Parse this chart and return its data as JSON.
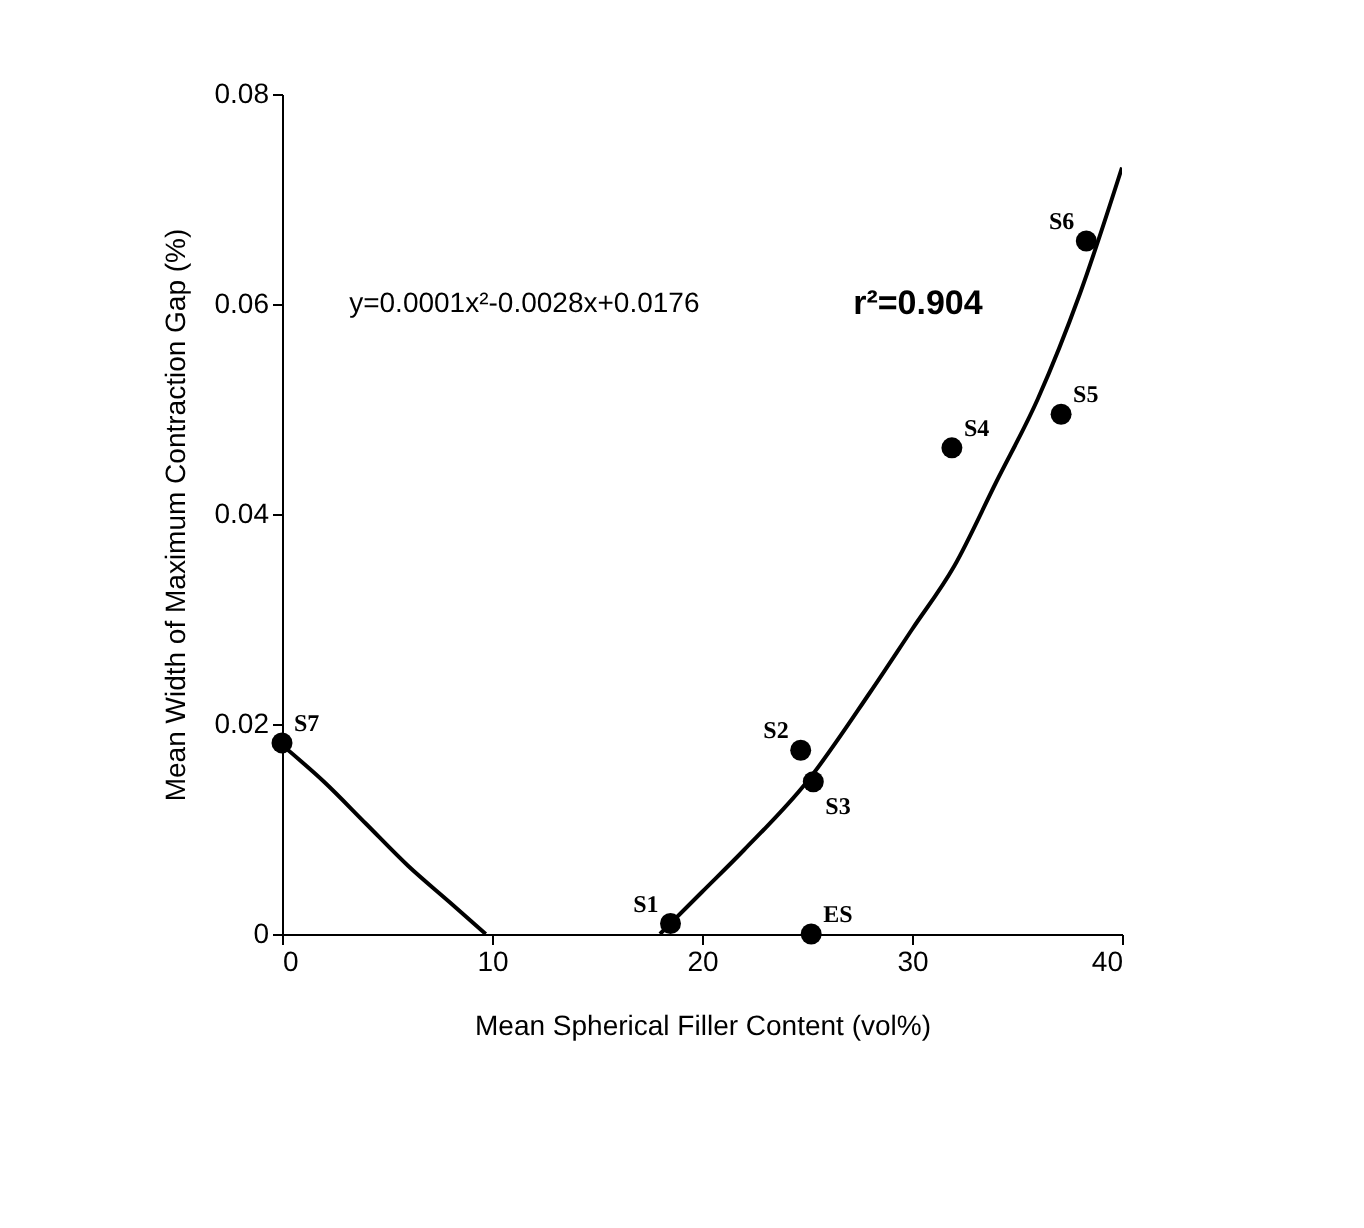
{
  "chart_data": {
    "type": "scatter",
    "xlabel": "Mean Spherical Filler Content (vol%)",
    "ylabel": "Mean Width of Maximum Contraction Gap (%)",
    "xlim": [
      0,
      40
    ],
    "xticks": [
      0,
      10,
      20,
      30,
      40
    ],
    "ylim": [
      0,
      0.08
    ],
    "yticks": [
      0,
      0.02,
      0.04,
      0.06,
      0.08
    ],
    "grid": false,
    "marker": "circle",
    "series": [
      {
        "color": "#000000",
        "x": [
          0,
          18.5,
          24.7,
          25.3,
          31.9,
          37.1,
          38.3,
          25.2
        ],
        "values": [
          0.0182,
          0.001,
          0.0175,
          0.0145,
          0.0463,
          0.0495,
          0.066,
          0
        ]
      },
      {
        "type": "line",
        "color": "#000000",
        "marker": "none",
        "line_style": "solid",
        "x": [
          0,
          2,
          4,
          6,
          8,
          9.7,
          14,
          18,
          20,
          22,
          25,
          28,
          30,
          32,
          34,
          36,
          38,
          40
        ],
        "values": [
          0.018,
          0.0145,
          0.0105,
          0.0065,
          0.003,
          0,
          null,
          0,
          0.004,
          0.008,
          0.0145,
          0.023,
          0.029,
          0.035,
          0.043,
          0.051,
          0.061,
          0.073
        ]
      }
    ],
    "annotations": [
      {
        "text": "S7",
        "x": 0,
        "y": 0.0182
      },
      {
        "text": "S1",
        "x": 18.5,
        "y": 0.001
      },
      {
        "text": "S2",
        "x": 24.7,
        "y": 0.0175
      },
      {
        "text": "S3",
        "x": 25.3,
        "y": 0.0145
      },
      {
        "text": "S4",
        "x": 31.9,
        "y": 0.0463
      },
      {
        "text": "S5",
        "x": 37.1,
        "y": 0.0495
      },
      {
        "text": "S6",
        "x": 38.3,
        "y": 0.066
      },
      {
        "text": "ES",
        "x": 25.2,
        "y": 0
      },
      "y=0.0001x²-0.0028x+0.0176",
      "r²=0.904"
    ]
  }
}
